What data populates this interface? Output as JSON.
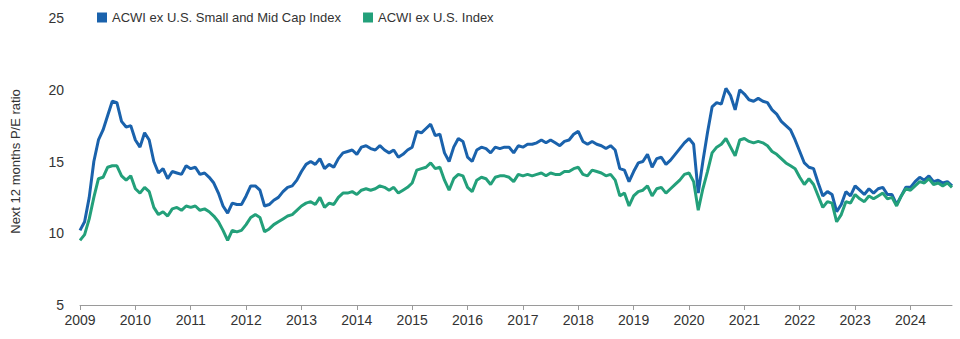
{
  "chart_data": {
    "type": "line",
    "y_label": "Next 12 months P/E ratio",
    "categories": [
      "2009",
      null,
      null,
      null,
      null,
      null,
      null,
      null,
      null,
      null,
      null,
      null,
      "2010",
      null,
      null,
      null,
      null,
      null,
      null,
      null,
      null,
      null,
      null,
      null,
      "2011",
      null,
      null,
      null,
      null,
      null,
      null,
      null,
      null,
      null,
      null,
      null,
      "2012",
      null,
      null,
      null,
      null,
      null,
      null,
      null,
      null,
      null,
      null,
      null,
      "2013",
      null,
      null,
      null,
      null,
      null,
      null,
      null,
      null,
      null,
      null,
      null,
      "2014",
      null,
      null,
      null,
      null,
      null,
      null,
      null,
      null,
      null,
      null,
      null,
      "2015",
      null,
      null,
      null,
      null,
      null,
      null,
      null,
      null,
      null,
      null,
      null,
      "2016",
      null,
      null,
      null,
      null,
      null,
      null,
      null,
      null,
      null,
      null,
      null,
      "2017",
      null,
      null,
      null,
      null,
      null,
      null,
      null,
      null,
      null,
      null,
      null,
      "2018",
      null,
      null,
      null,
      null,
      null,
      null,
      null,
      null,
      null,
      null,
      null,
      "2019",
      null,
      null,
      null,
      null,
      null,
      null,
      null,
      null,
      null,
      null,
      null,
      "2020",
      null,
      null,
      null,
      null,
      null,
      null,
      null,
      null,
      null,
      null,
      null,
      "2021",
      null,
      null,
      null,
      null,
      null,
      null,
      null,
      null,
      null,
      null,
      null,
      "2022",
      null,
      null,
      null,
      null,
      null,
      null,
      null,
      null,
      null,
      null,
      null,
      "2023",
      null,
      null,
      null,
      null,
      null,
      null,
      null,
      null,
      null,
      null,
      null,
      "2024",
      null,
      null,
      null,
      null,
      null,
      null,
      null,
      null,
      null
    ],
    "series": [
      {
        "name": "ACWI ex U.S. Small and Mid Cap Index",
        "color": "#1a62ac",
        "values": [
          10.2,
          10.8,
          12.5,
          15.0,
          16.5,
          17.2,
          18.2,
          19.2,
          19.1,
          17.8,
          17.4,
          17.5,
          16.5,
          16.0,
          17.0,
          16.5,
          15.0,
          14.2,
          14.5,
          13.8,
          14.3,
          14.2,
          14.1,
          14.7,
          14.5,
          14.6,
          14.1,
          14.2,
          13.9,
          13.5,
          12.8,
          11.9,
          11.4,
          12.1,
          12.0,
          12.0,
          12.6,
          13.3,
          13.3,
          13.0,
          11.9,
          12.0,
          12.3,
          12.5,
          12.9,
          13.2,
          13.3,
          13.7,
          14.3,
          14.8,
          15.0,
          14.8,
          15.2,
          14.5,
          14.8,
          14.6,
          15.2,
          15.6,
          15.7,
          15.8,
          15.5,
          16.0,
          16.1,
          15.9,
          15.8,
          16.1,
          15.8,
          15.6,
          15.8,
          15.3,
          15.5,
          15.8,
          16.0,
          17.1,
          17.0,
          17.3,
          17.6,
          16.8,
          16.9,
          15.6,
          15.0,
          16.0,
          16.6,
          16.4,
          15.3,
          15.0,
          15.8,
          16.0,
          15.9,
          15.6,
          16.0,
          15.9,
          16.0,
          16.0,
          15.6,
          16.1,
          16.0,
          16.2,
          16.2,
          16.3,
          16.5,
          16.3,
          16.5,
          16.3,
          16.1,
          16.4,
          16.5,
          16.9,
          17.1,
          16.4,
          16.2,
          16.4,
          16.2,
          16.1,
          15.9,
          16.1,
          15.8,
          14.5,
          14.4,
          13.6,
          14.3,
          14.9,
          15.0,
          15.5,
          14.6,
          15.2,
          15.3,
          14.8,
          15.1,
          15.5,
          15.9,
          16.3,
          16.6,
          16.2,
          12.8,
          15.0,
          17.0,
          18.8,
          19.1,
          19.0,
          20.1,
          19.6,
          18.6,
          20.0,
          19.7,
          19.3,
          19.2,
          19.4,
          19.2,
          19.1,
          18.6,
          18.3,
          17.8,
          17.5,
          17.2,
          16.5,
          15.7,
          14.9,
          14.6,
          14.5,
          13.5,
          12.6,
          12.9,
          12.7,
          11.5,
          12.0,
          12.9,
          12.6,
          13.3,
          13.0,
          12.7,
          13.1,
          12.8,
          13.1,
          13.2,
          12.7,
          12.7,
          12.0,
          12.6,
          13.2,
          13.2,
          13.6,
          13.9,
          13.7,
          14.0,
          13.6,
          13.7,
          13.5,
          13.6,
          13.3
        ]
      },
      {
        "name": "ACWI ex U.S. Index",
        "color": "#23a07a",
        "values": [
          9.5,
          9.9,
          11.0,
          12.5,
          13.8,
          13.9,
          14.6,
          14.7,
          14.7,
          14.0,
          13.7,
          14.0,
          13.1,
          12.8,
          13.2,
          12.9,
          11.8,
          11.3,
          11.5,
          11.2,
          11.7,
          11.8,
          11.6,
          11.9,
          11.8,
          11.9,
          11.6,
          11.7,
          11.5,
          11.2,
          10.8,
          10.2,
          9.5,
          10.2,
          10.1,
          10.2,
          10.6,
          11.1,
          11.3,
          11.1,
          10.1,
          10.3,
          10.6,
          10.8,
          11.0,
          11.2,
          11.3,
          11.6,
          11.9,
          12.1,
          12.2,
          12.0,
          12.5,
          11.8,
          12.1,
          12.0,
          12.5,
          12.8,
          12.8,
          12.9,
          12.7,
          13.0,
          13.1,
          13.0,
          13.1,
          13.3,
          13.2,
          13.0,
          13.2,
          12.8,
          13.0,
          13.2,
          13.5,
          14.4,
          14.5,
          14.6,
          14.9,
          14.5,
          14.6,
          13.7,
          13.0,
          13.8,
          14.1,
          14.0,
          13.2,
          12.9,
          13.7,
          13.9,
          13.8,
          13.4,
          13.9,
          14.0,
          14.0,
          13.9,
          13.6,
          14.1,
          14.0,
          14.1,
          14.0,
          14.1,
          14.2,
          14.0,
          14.2,
          14.1,
          14.1,
          14.3,
          14.3,
          14.5,
          14.6,
          14.1,
          14.0,
          14.4,
          14.3,
          14.2,
          14.0,
          14.1,
          13.7,
          12.6,
          12.8,
          11.9,
          12.6,
          12.9,
          13.0,
          13.3,
          12.6,
          13.1,
          13.2,
          12.8,
          13.1,
          13.4,
          13.7,
          14.1,
          14.2,
          13.6,
          11.6,
          13.1,
          14.3,
          15.6,
          16.0,
          16.2,
          16.6,
          16.0,
          15.4,
          16.5,
          16.6,
          16.4,
          16.3,
          16.4,
          16.3,
          16.1,
          15.7,
          15.5,
          15.2,
          14.9,
          14.7,
          14.5,
          13.9,
          13.4,
          13.8,
          13.4,
          12.6,
          11.8,
          12.2,
          12.1,
          10.8,
          11.3,
          12.2,
          12.1,
          12.7,
          12.4,
          12.2,
          12.6,
          12.4,
          12.6,
          12.8,
          12.4,
          12.5,
          11.9,
          12.6,
          13.1,
          13.0,
          13.3,
          13.6,
          13.5,
          13.8,
          13.4,
          13.5,
          13.3,
          13.5,
          13.2
        ]
      }
    ],
    "ylim": [
      5,
      25
    ],
    "yticks": [
      5,
      10,
      15,
      20,
      25
    ],
    "grid": false,
    "legend": "upper left"
  }
}
